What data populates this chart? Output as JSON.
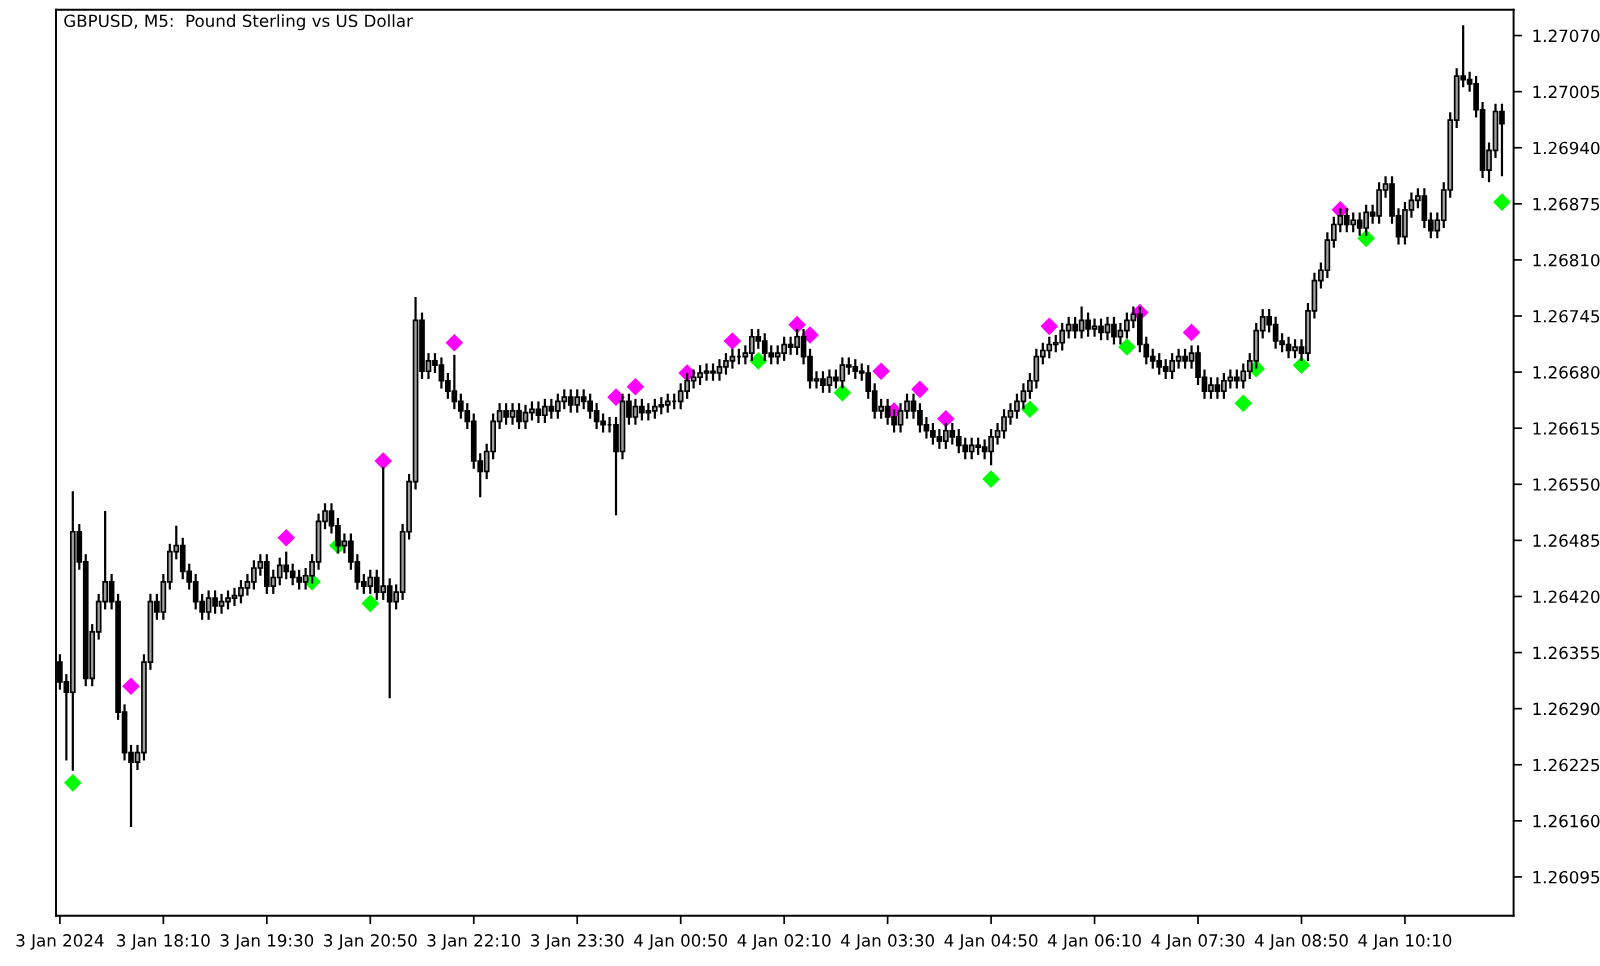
{
  "chart_data": {
    "type": "candlestick",
    "title": "GBPUSD, M5:  Pound Sterling vs US Dollar",
    "color": "#000000",
    "grid": false,
    "x": [
      "2024-01-03T16:50",
      "2024-01-03T16:55",
      "2024-01-03T17:00",
      "2024-01-03T17:05",
      "2024-01-03T17:10",
      "2024-01-03T17:15",
      "2024-01-03T17:20",
      "2024-01-03T17:25",
      "2024-01-03T17:30",
      "2024-01-03T17:35",
      "2024-01-03T17:40",
      "2024-01-03T17:45",
      "2024-01-03T17:50",
      "2024-01-03T17:55",
      "2024-01-03T18:00",
      "2024-01-03T18:05",
      "2024-01-03T18:10",
      "2024-01-03T18:15",
      "2024-01-03T18:20",
      "2024-01-03T18:25",
      "2024-01-03T18:30",
      "2024-01-03T18:35",
      "2024-01-03T18:40",
      "2024-01-03T18:45",
      "2024-01-03T18:50",
      "2024-01-03T18:55",
      "2024-01-03T19:00",
      "2024-01-03T19:05",
      "2024-01-03T19:10",
      "2024-01-03T19:15",
      "2024-01-03T19:20",
      "2024-01-03T19:25",
      "2024-01-03T19:30",
      "2024-01-03T19:35",
      "2024-01-03T19:40",
      "2024-01-03T19:45",
      "2024-01-03T19:50",
      "2024-01-03T19:55",
      "2024-01-03T20:00",
      "2024-01-03T20:05",
      "2024-01-03T20:10",
      "2024-01-03T20:15",
      "2024-01-03T20:20",
      "2024-01-03T20:25",
      "2024-01-03T20:30",
      "2024-01-03T20:35",
      "2024-01-03T20:40",
      "2024-01-03T20:45",
      "2024-01-03T20:50",
      "2024-01-03T20:55",
      "2024-01-03T21:00",
      "2024-01-03T21:05",
      "2024-01-03T21:10",
      "2024-01-03T21:15",
      "2024-01-03T21:20",
      "2024-01-03T21:25",
      "2024-01-03T21:30",
      "2024-01-03T21:35",
      "2024-01-03T21:40",
      "2024-01-03T21:45",
      "2024-01-03T21:50",
      "2024-01-03T21:55",
      "2024-01-03T22:00",
      "2024-01-03T22:05",
      "2024-01-03T22:10",
      "2024-01-03T22:15",
      "2024-01-03T22:20",
      "2024-01-03T22:25",
      "2024-01-03T22:30",
      "2024-01-03T22:35",
      "2024-01-03T22:40",
      "2024-01-03T22:45",
      "2024-01-03T22:50",
      "2024-01-03T22:55",
      "2024-01-03T23:00",
      "2024-01-03T23:05",
      "2024-01-03T23:10",
      "2024-01-03T23:15",
      "2024-01-03T23:20",
      "2024-01-03T23:25",
      "2024-01-03T23:30",
      "2024-01-03T23:35",
      "2024-01-03T23:40",
      "2024-01-03T23:45",
      "2024-01-03T23:50",
      "2024-01-03T23:55",
      "2024-01-04T00:00",
      "2024-01-04T00:05",
      "2024-01-04T00:10",
      "2024-01-04T00:15",
      "2024-01-04T00:20",
      "2024-01-04T00:25",
      "2024-01-04T00:30",
      "2024-01-04T00:35",
      "2024-01-04T00:40",
      "2024-01-04T00:45",
      "2024-01-04T00:50",
      "2024-01-04T00:55",
      "2024-01-04T01:00",
      "2024-01-04T01:05",
      "2024-01-04T01:10",
      "2024-01-04T01:15",
      "2024-01-04T01:20",
      "2024-01-04T01:25",
      "2024-01-04T01:30",
      "2024-01-04T01:35",
      "2024-01-04T01:40",
      "2024-01-04T01:45",
      "2024-01-04T01:50",
      "2024-01-04T01:55",
      "2024-01-04T02:00",
      "2024-01-04T02:05",
      "2024-01-04T02:10",
      "2024-01-04T02:15",
      "2024-01-04T02:20",
      "2024-01-04T02:25",
      "2024-01-04T02:30",
      "2024-01-04T02:35",
      "2024-01-04T02:40",
      "2024-01-04T02:45",
      "2024-01-04T02:50",
      "2024-01-04T02:55",
      "2024-01-04T03:00",
      "2024-01-04T03:05",
      "2024-01-04T03:10",
      "2024-01-04T03:15",
      "2024-01-04T03:20",
      "2024-01-04T03:25",
      "2024-01-04T03:30",
      "2024-01-04T03:35",
      "2024-01-04T03:40",
      "2024-01-04T03:45",
      "2024-01-04T03:50",
      "2024-01-04T03:55",
      "2024-01-04T04:00",
      "2024-01-04T04:05",
      "2024-01-04T04:10",
      "2024-01-04T04:15",
      "2024-01-04T04:20",
      "2024-01-04T04:25",
      "2024-01-04T04:30",
      "2024-01-04T04:35",
      "2024-01-04T04:40",
      "2024-01-04T04:45",
      "2024-01-04T04:50",
      "2024-01-04T04:55",
      "2024-01-04T05:00",
      "2024-01-04T05:05",
      "2024-01-04T05:10",
      "2024-01-04T05:15",
      "2024-01-04T05:20",
      "2024-01-04T05:25",
      "2024-01-04T05:30",
      "2024-01-04T05:35",
      "2024-01-04T05:40",
      "2024-01-04T05:45",
      "2024-01-04T05:50",
      "2024-01-04T05:55",
      "2024-01-04T06:00",
      "2024-01-04T06:05",
      "2024-01-04T06:10",
      "2024-01-04T06:15",
      "2024-01-04T06:20",
      "2024-01-04T06:25",
      "2024-01-04T06:30",
      "2024-01-04T06:35",
      "2024-01-04T06:40",
      "2024-01-04T06:45",
      "2024-01-04T06:50",
      "2024-01-04T06:55",
      "2024-01-04T07:00",
      "2024-01-04T07:05",
      "2024-01-04T07:10",
      "2024-01-04T07:15",
      "2024-01-04T07:20",
      "2024-01-04T07:25",
      "2024-01-04T07:30",
      "2024-01-04T07:35",
      "2024-01-04T07:40",
      "2024-01-04T07:45",
      "2024-01-04T07:50",
      "2024-01-04T07:55",
      "2024-01-04T08:00",
      "2024-01-04T08:05",
      "2024-01-04T08:10",
      "2024-01-04T08:15",
      "2024-01-04T08:20",
      "2024-01-04T08:25",
      "2024-01-04T08:30",
      "2024-01-04T08:35",
      "2024-01-04T08:40",
      "2024-01-04T08:45",
      "2024-01-04T08:50",
      "2024-01-04T08:55",
      "2024-01-04T09:00",
      "2024-01-04T09:05",
      "2024-01-04T09:10",
      "2024-01-04T09:15",
      "2024-01-04T09:20",
      "2024-01-04T09:25",
      "2024-01-04T09:30",
      "2024-01-04T09:35",
      "2024-01-04T09:40",
      "2024-01-04T09:45",
      "2024-01-04T09:50",
      "2024-01-04T09:55",
      "2024-01-04T10:00",
      "2024-01-04T10:05",
      "2024-01-04T10:10",
      "2024-01-04T10:15",
      "2024-01-04T10:20",
      "2024-01-04T10:25",
      "2024-01-04T10:30",
      "2024-01-04T10:35",
      "2024-01-04T10:40",
      "2024-01-04T10:45",
      "2024-01-04T10:50",
      "2024-01-04T10:55",
      "2024-01-04T11:00",
      "2024-01-04T11:05",
      "2024-01-04T11:10",
      "2024-01-04T11:15",
      "2024-01-04T11:20",
      "2024-01-04T11:25"
    ],
    "ohlc": [
      [
        1.26344,
        1.26353,
        1.26312,
        1.26321
      ],
      [
        1.26321,
        1.2633,
        1.2623,
        1.26309
      ],
      [
        1.26309,
        1.26542,
        1.26218,
        1.26495
      ],
      [
        1.26495,
        1.26504,
        1.26451,
        1.2646
      ],
      [
        1.2646,
        1.26469,
        1.26316,
        1.26325
      ],
      [
        1.26325,
        1.26388,
        1.26316,
        1.26379
      ],
      [
        1.26379,
        1.26423,
        1.2637,
        1.26414
      ],
      [
        1.26414,
        1.26519,
        1.26405,
        1.26437
      ],
      [
        1.26437,
        1.26446,
        1.26405,
        1.26414
      ],
      [
        1.26414,
        1.26423,
        1.26277,
        1.26286
      ],
      [
        1.26286,
        1.26295,
        1.2623,
        1.26239
      ],
      [
        1.26239,
        1.26248,
        1.26153,
        1.26228
      ],
      [
        1.26228,
        1.26248,
        1.26219,
        1.26239
      ],
      [
        1.26239,
        1.26353,
        1.2623,
        1.26344
      ],
      [
        1.26344,
        1.26423,
        1.26335,
        1.26414
      ],
      [
        1.26414,
        1.26423,
        1.26393,
        1.26402
      ],
      [
        1.26402,
        1.26446,
        1.26393,
        1.26437
      ],
      [
        1.26437,
        1.26481,
        1.26428,
        1.26472
      ],
      [
        1.26472,
        1.26502,
        1.26463,
        1.26479
      ],
      [
        1.26479,
        1.26488,
        1.2644,
        1.26449
      ],
      [
        1.26449,
        1.26458,
        1.26428,
        1.26437
      ],
      [
        1.26437,
        1.26446,
        1.26405,
        1.26414
      ],
      [
        1.26414,
        1.26423,
        1.26393,
        1.26402
      ],
      [
        1.26402,
        1.26427,
        1.26393,
        1.26418
      ],
      [
        1.26418,
        1.26427,
        1.264,
        1.26409
      ],
      [
        1.26409,
        1.26423,
        1.264,
        1.26414
      ],
      [
        1.26414,
        1.26427,
        1.26405,
        1.26418
      ],
      [
        1.26418,
        1.2643,
        1.26409,
        1.26421
      ],
      [
        1.26421,
        1.26439,
        1.26412,
        1.2643
      ],
      [
        1.2643,
        1.26446,
        1.26421,
        1.26437
      ],
      [
        1.26437,
        1.26462,
        1.26428,
        1.26453
      ],
      [
        1.26453,
        1.26469,
        1.26444,
        1.2646
      ],
      [
        1.2646,
        1.26469,
        1.26423,
        1.26432
      ],
      [
        1.26432,
        1.26451,
        1.26423,
        1.26442
      ],
      [
        1.26442,
        1.26465,
        1.26433,
        1.26456
      ],
      [
        1.26456,
        1.26472,
        1.2644,
        1.26449
      ],
      [
        1.26449,
        1.26458,
        1.26433,
        1.26442
      ],
      [
        1.26442,
        1.26451,
        1.26428,
        1.26437
      ],
      [
        1.26437,
        1.26453,
        1.26428,
        1.26444
      ],
      [
        1.26444,
        1.26469,
        1.26435,
        1.2646
      ],
      [
        1.2646,
        1.26516,
        1.26451,
        1.26507
      ],
      [
        1.26507,
        1.26528,
        1.26498,
        1.26519
      ],
      [
        1.26519,
        1.26528,
        1.26493,
        1.26502
      ],
      [
        1.26502,
        1.26511,
        1.2647,
        1.26479
      ],
      [
        1.26479,
        1.26493,
        1.2647,
        1.26484
      ],
      [
        1.26484,
        1.26493,
        1.26451,
        1.2646
      ],
      [
        1.2646,
        1.26469,
        1.26428,
        1.26437
      ],
      [
        1.26437,
        1.26446,
        1.26423,
        1.26432
      ],
      [
        1.26432,
        1.26451,
        1.26423,
        1.26442
      ],
      [
        1.26442,
        1.26451,
        1.26416,
        1.26425
      ],
      [
        1.26425,
        1.2657,
        1.26416,
        1.26432
      ],
      [
        1.26432,
        1.26441,
        1.26302,
        1.26414
      ],
      [
        1.26414,
        1.26434,
        1.26405,
        1.26425
      ],
      [
        1.26425,
        1.26504,
        1.26416,
        1.26495
      ],
      [
        1.26495,
        1.26562,
        1.26486,
        1.26553
      ],
      [
        1.26553,
        1.26767,
        1.26544,
        1.2674
      ],
      [
        1.2674,
        1.26749,
        1.26672,
        1.26681
      ],
      [
        1.26681,
        1.26702,
        1.26672,
        1.26693
      ],
      [
        1.26693,
        1.26702,
        1.26679,
        1.26688
      ],
      [
        1.26688,
        1.26697,
        1.26661,
        1.2667
      ],
      [
        1.2667,
        1.26679,
        1.26649,
        1.26658
      ],
      [
        1.26658,
        1.267,
        1.26637,
        1.26646
      ],
      [
        1.26646,
        1.26655,
        1.26626,
        1.26635
      ],
      [
        1.26635,
        1.26644,
        1.26614,
        1.26623
      ],
      [
        1.26623,
        1.26632,
        1.26568,
        1.26577
      ],
      [
        1.26577,
        1.26586,
        1.26535,
        1.26565
      ],
      [
        1.26565,
        1.26597,
        1.26556,
        1.26588
      ],
      [
        1.26588,
        1.26632,
        1.26579,
        1.26623
      ],
      [
        1.26623,
        1.26644,
        1.26614,
        1.26635
      ],
      [
        1.26635,
        1.26644,
        1.26619,
        1.26628
      ],
      [
        1.26628,
        1.26644,
        1.26619,
        1.26635
      ],
      [
        1.26635,
        1.26644,
        1.26614,
        1.26623
      ],
      [
        1.26623,
        1.26642,
        1.26614,
        1.26633
      ],
      [
        1.26633,
        1.26646,
        1.26624,
        1.26637
      ],
      [
        1.26637,
        1.26646,
        1.26621,
        1.2663
      ],
      [
        1.2663,
        1.26649,
        1.26621,
        1.2664
      ],
      [
        1.2664,
        1.26649,
        1.26626,
        1.26635
      ],
      [
        1.26635,
        1.26655,
        1.26626,
        1.26646
      ],
      [
        1.26646,
        1.2666,
        1.26637,
        1.26651
      ],
      [
        1.26651,
        1.2666,
        1.26633,
        1.26642
      ],
      [
        1.26642,
        1.2666,
        1.26633,
        1.26651
      ],
      [
        1.26651,
        1.2666,
        1.26637,
        1.26646
      ],
      [
        1.26646,
        1.26655,
        1.26626,
        1.26635
      ],
      [
        1.26635,
        1.26644,
        1.26614,
        1.26623
      ],
      [
        1.26623,
        1.26632,
        1.2661,
        1.26619
      ],
      [
        1.26619,
        1.26628,
        1.2661,
        1.26619
      ],
      [
        1.26619,
        1.26628,
        1.26514,
        1.26588
      ],
      [
        1.26588,
        1.26655,
        1.26579,
        1.26646
      ],
      [
        1.26646,
        1.26655,
        1.26619,
        1.26628
      ],
      [
        1.26628,
        1.26649,
        1.26619,
        1.2664
      ],
      [
        1.2664,
        1.26649,
        1.26624,
        1.26633
      ],
      [
        1.26633,
        1.26644,
        1.26624,
        1.26635
      ],
      [
        1.26635,
        1.26649,
        1.26626,
        1.2664
      ],
      [
        1.2664,
        1.26651,
        1.26631,
        1.26642
      ],
      [
        1.26642,
        1.26655,
        1.26633,
        1.26646
      ],
      [
        1.26646,
        1.26655,
        1.26637,
        1.26646
      ],
      [
        1.26646,
        1.26667,
        1.26637,
        1.26658
      ],
      [
        1.26658,
        1.26679,
        1.26649,
        1.2667
      ],
      [
        1.2667,
        1.26683,
        1.26661,
        1.26674
      ],
      [
        1.26674,
        1.26688,
        1.26665,
        1.26679
      ],
      [
        1.26679,
        1.2669,
        1.2667,
        1.26681
      ],
      [
        1.26681,
        1.2669,
        1.2667,
        1.26679
      ],
      [
        1.26679,
        1.26695,
        1.2667,
        1.26686
      ],
      [
        1.26686,
        1.26702,
        1.26677,
        1.26693
      ],
      [
        1.26693,
        1.26707,
        1.26684,
        1.26698
      ],
      [
        1.26698,
        1.26707,
        1.26689,
        1.26698
      ],
      [
        1.26698,
        1.26711,
        1.26689,
        1.26702
      ],
      [
        1.26702,
        1.2673,
        1.26693,
        1.26721
      ],
      [
        1.26721,
        1.2673,
        1.26707,
        1.26716
      ],
      [
        1.26716,
        1.26725,
        1.26693,
        1.26702
      ],
      [
        1.26702,
        1.26711,
        1.26689,
        1.26698
      ],
      [
        1.26698,
        1.26711,
        1.26689,
        1.26702
      ],
      [
        1.26702,
        1.26721,
        1.26693,
        1.26712
      ],
      [
        1.26712,
        1.26721,
        1.267,
        1.26709
      ],
      [
        1.26709,
        1.2673,
        1.267,
        1.26721
      ],
      [
        1.26721,
        1.2673,
        1.26689,
        1.26698
      ],
      [
        1.26698,
        1.26707,
        1.26661,
        1.2667
      ],
      [
        1.2667,
        1.26681,
        1.26661,
        1.26672
      ],
      [
        1.26672,
        1.26681,
        1.26656,
        1.26665
      ],
      [
        1.26665,
        1.26683,
        1.26656,
        1.26674
      ],
      [
        1.26674,
        1.26683,
        1.26661,
        1.2667
      ],
      [
        1.2667,
        1.26697,
        1.26661,
        1.26688
      ],
      [
        1.26688,
        1.26697,
        1.26677,
        1.26686
      ],
      [
        1.26686,
        1.26695,
        1.26672,
        1.26681
      ],
      [
        1.26681,
        1.2669,
        1.2667,
        1.26679
      ],
      [
        1.26679,
        1.26688,
        1.26649,
        1.26658
      ],
      [
        1.26658,
        1.26667,
        1.26626,
        1.26635
      ],
      [
        1.26635,
        1.26649,
        1.26626,
        1.2664
      ],
      [
        1.2664,
        1.26649,
        1.26619,
        1.26628
      ],
      [
        1.26628,
        1.26637,
        1.2661,
        1.26619
      ],
      [
        1.26619,
        1.26644,
        1.2661,
        1.26635
      ],
      [
        1.26635,
        1.26655,
        1.26626,
        1.26646
      ],
      [
        1.26646,
        1.26655,
        1.26626,
        1.26635
      ],
      [
        1.26635,
        1.26644,
        1.2661,
        1.26619
      ],
      [
        1.26619,
        1.26628,
        1.26603,
        1.26612
      ],
      [
        1.26612,
        1.26621,
        1.26596,
        1.26605
      ],
      [
        1.26605,
        1.26614,
        1.26591,
        1.266
      ],
      [
        1.266,
        1.26621,
        1.26591,
        1.26612
      ],
      [
        1.26612,
        1.26621,
        1.26596,
        1.26605
      ],
      [
        1.26605,
        1.26614,
        1.26586,
        1.26595
      ],
      [
        1.26595,
        1.26604,
        1.26579,
        1.26588
      ],
      [
        1.26588,
        1.26604,
        1.26579,
        1.26595
      ],
      [
        1.26595,
        1.26604,
        1.26584,
        1.26593
      ],
      [
        1.26593,
        1.26602,
        1.26579,
        1.26588
      ],
      [
        1.26588,
        1.26614,
        1.26572,
        1.26605
      ],
      [
        1.26605,
        1.26621,
        1.26596,
        1.26612
      ],
      [
        1.26612,
        1.26637,
        1.26603,
        1.26628
      ],
      [
        1.26628,
        1.26644,
        1.26619,
        1.26635
      ],
      [
        1.26635,
        1.26655,
        1.26626,
        1.26646
      ],
      [
        1.26646,
        1.26667,
        1.26637,
        1.26658
      ],
      [
        1.26658,
        1.26679,
        1.26649,
        1.2667
      ],
      [
        1.2667,
        1.26707,
        1.26661,
        1.26698
      ],
      [
        1.26698,
        1.26714,
        1.26689,
        1.26705
      ],
      [
        1.26705,
        1.26721,
        1.26696,
        1.26712
      ],
      [
        1.26712,
        1.26723,
        1.26703,
        1.26714
      ],
      [
        1.26714,
        1.26737,
        1.26705,
        1.26728
      ],
      [
        1.26728,
        1.26744,
        1.26719,
        1.26735
      ],
      [
        1.26735,
        1.26744,
        1.26719,
        1.26728
      ],
      [
        1.26728,
        1.26756,
        1.26719,
        1.2674
      ],
      [
        1.2674,
        1.26749,
        1.26721,
        1.2673
      ],
      [
        1.2673,
        1.26742,
        1.26721,
        1.26733
      ],
      [
        1.26733,
        1.26742,
        1.26717,
        1.26726
      ],
      [
        1.26726,
        1.26744,
        1.26717,
        1.26735
      ],
      [
        1.26735,
        1.26744,
        1.26712,
        1.26721
      ],
      [
        1.26721,
        1.26737,
        1.26712,
        1.26728
      ],
      [
        1.26728,
        1.26749,
        1.26719,
        1.2674
      ],
      [
        1.2674,
        1.26756,
        1.26731,
        1.26747
      ],
      [
        1.26747,
        1.26756,
        1.26703,
        1.26712
      ],
      [
        1.26712,
        1.26721,
        1.26689,
        1.26698
      ],
      [
        1.26698,
        1.26707,
        1.26684,
        1.26693
      ],
      [
        1.26693,
        1.26702,
        1.26677,
        1.26686
      ],
      [
        1.26686,
        1.26695,
        1.26672,
        1.26681
      ],
      [
        1.26681,
        1.26702,
        1.26672,
        1.26693
      ],
      [
        1.26693,
        1.26707,
        1.26684,
        1.26698
      ],
      [
        1.26698,
        1.26707,
        1.26684,
        1.26693
      ],
      [
        1.26693,
        1.26711,
        1.26684,
        1.26702
      ],
      [
        1.26702,
        1.26711,
        1.26665,
        1.26674
      ],
      [
        1.26674,
        1.26683,
        1.26649,
        1.26658
      ],
      [
        1.26658,
        1.26674,
        1.26649,
        1.26665
      ],
      [
        1.26665,
        1.26674,
        1.26649,
        1.26658
      ],
      [
        1.26658,
        1.26679,
        1.26649,
        1.2667
      ],
      [
        1.2667,
        1.26683,
        1.26661,
        1.26674
      ],
      [
        1.26674,
        1.26683,
        1.26661,
        1.2667
      ],
      [
        1.2667,
        1.2669,
        1.26661,
        1.26681
      ],
      [
        1.26681,
        1.26702,
        1.26672,
        1.26693
      ],
      [
        1.26693,
        1.26737,
        1.26684,
        1.26728
      ],
      [
        1.26728,
        1.26753,
        1.26719,
        1.26744
      ],
      [
        1.26744,
        1.26753,
        1.26726,
        1.26735
      ],
      [
        1.26735,
        1.26744,
        1.26707,
        1.26716
      ],
      [
        1.26716,
        1.26725,
        1.26703,
        1.26712
      ],
      [
        1.26712,
        1.26721,
        1.26696,
        1.26705
      ],
      [
        1.26705,
        1.26718,
        1.26696,
        1.26709
      ],
      [
        1.26709,
        1.26718,
        1.26693,
        1.26702
      ],
      [
        1.26702,
        1.2676,
        1.26693,
        1.26751
      ],
      [
        1.26751,
        1.26795,
        1.26742,
        1.26786
      ],
      [
        1.26786,
        1.26807,
        1.26777,
        1.26798
      ],
      [
        1.26798,
        1.26842,
        1.26789,
        1.26833
      ],
      [
        1.26833,
        1.2686,
        1.26824,
        1.26851
      ],
      [
        1.26851,
        1.2687,
        1.26842,
        1.26861
      ],
      [
        1.26861,
        1.2687,
        1.26842,
        1.26851
      ],
      [
        1.26851,
        1.26865,
        1.26842,
        1.26856
      ],
      [
        1.26856,
        1.26865,
        1.26838,
        1.26847
      ],
      [
        1.26847,
        1.26874,
        1.26838,
        1.26865
      ],
      [
        1.26865,
        1.26874,
        1.26852,
        1.26861
      ],
      [
        1.26861,
        1.269,
        1.26852,
        1.26891
      ],
      [
        1.26891,
        1.26907,
        1.26882,
        1.26898
      ],
      [
        1.26898,
        1.26907,
        1.26852,
        1.26861
      ],
      [
        1.26861,
        1.2687,
        1.26828,
        1.26837
      ],
      [
        1.26837,
        1.26877,
        1.26828,
        1.26868
      ],
      [
        1.26868,
        1.26888,
        1.26859,
        1.26879
      ],
      [
        1.26879,
        1.26893,
        1.2687,
        1.26884
      ],
      [
        1.26884,
        1.26893,
        1.26847,
        1.26856
      ],
      [
        1.26856,
        1.26865,
        1.26835,
        1.26844
      ],
      [
        1.26844,
        1.26865,
        1.26835,
        1.26856
      ],
      [
        1.26856,
        1.269,
        1.26847,
        1.26891
      ],
      [
        1.26891,
        1.26981,
        1.26882,
        1.26972
      ],
      [
        1.26972,
        1.27032,
        1.26963,
        1.27023
      ],
      [
        1.27023,
        1.27082,
        1.2701,
        1.27019
      ],
      [
        1.27019,
        1.27028,
        1.27005,
        1.27014
      ],
      [
        1.27014,
        1.27023,
        1.26975,
        1.26984
      ],
      [
        1.26984,
        1.26993,
        1.26905,
        1.26914
      ],
      [
        1.26914,
        1.26946,
        1.269,
        1.26937
      ],
      [
        1.26937,
        1.26991,
        1.26928,
        1.26982
      ],
      [
        1.26982,
        1.26991,
        1.26907,
        1.26968
      ]
    ],
    "series": [
      {
        "type": "scatter",
        "color": "#ff00ff",
        "marker": "diamond",
        "x": [
          "2024-01-03T17:45",
          "2024-01-03T19:45",
          "2024-01-03T21:00",
          "2024-01-03T21:55",
          "2024-01-04T00:00",
          "2024-01-04T00:15",
          "2024-01-04T00:55",
          "2024-01-04T01:30",
          "2024-01-04T02:20",
          "2024-01-04T02:30",
          "2024-01-04T03:25",
          "2024-01-04T03:35",
          "2024-01-04T03:55",
          "2024-01-04T04:15",
          "2024-01-04T05:35",
          "2024-01-04T06:45",
          "2024-01-04T07:25",
          "2024-01-04T09:20"
        ],
        "values": [
          1.26316,
          1.26488,
          1.26577,
          1.26714,
          1.26651,
          1.26663,
          1.26679,
          1.26716,
          1.26735,
          1.26723,
          1.26681,
          1.26635,
          1.2666,
          1.26626,
          1.26733,
          1.26749,
          1.26726,
          1.26868
        ]
      },
      {
        "type": "scatter",
        "color": "#00ff00",
        "marker": "diamond",
        "x": [
          "2024-01-03T17:00",
          "2024-01-03T20:05",
          "2024-01-03T20:25",
          "2024-01-03T20:50",
          "2024-01-04T01:50",
          "2024-01-04T02:55",
          "2024-01-04T04:50",
          "2024-01-04T05:20",
          "2024-01-04T06:35",
          "2024-01-04T08:05",
          "2024-01-04T08:15",
          "2024-01-04T08:50",
          "2024-01-04T09:40",
          "2024-01-04T11:25"
        ],
        "values": [
          1.26204,
          1.26437,
          1.26479,
          1.26412,
          1.26693,
          1.26656,
          1.26556,
          1.26637,
          1.26709,
          1.26644,
          1.26684,
          1.26688,
          1.26835,
          1.26877
        ]
      }
    ],
    "xlim": [
      "2024-01-03T16:47",
      "2024-01-04T11:34"
    ],
    "xticks": [
      {
        "value": "2024-01-03T16:50",
        "label": "3 Jan 2024"
      },
      {
        "value": "2024-01-03T18:10",
        "label": "3 Jan 18:10"
      },
      {
        "value": "2024-01-03T19:30",
        "label": "3 Jan 19:30"
      },
      {
        "value": "2024-01-03T20:50",
        "label": "3 Jan 20:50"
      },
      {
        "value": "2024-01-03T22:10",
        "label": "3 Jan 22:10"
      },
      {
        "value": "2024-01-03T23:30",
        "label": "3 Jan 23:30"
      },
      {
        "value": "2024-01-04T00:50",
        "label": "4 Jan 00:50"
      },
      {
        "value": "2024-01-04T02:10",
        "label": "4 Jan 02:10"
      },
      {
        "value": "2024-01-04T03:30",
        "label": "4 Jan 03:30"
      },
      {
        "value": "2024-01-04T04:50",
        "label": "4 Jan 04:50"
      },
      {
        "value": "2024-01-04T06:10",
        "label": "4 Jan 06:10"
      },
      {
        "value": "2024-01-04T07:30",
        "label": "4 Jan 07:30"
      },
      {
        "value": "2024-01-04T08:50",
        "label": "4 Jan 08:50"
      },
      {
        "value": "2024-01-04T10:10",
        "label": "4 Jan 10:10"
      }
    ],
    "ylim": [
      1.2605,
      1.271
    ],
    "yticks": [
      1.26095,
      {
        "value": 1.2616,
        "label": "1.26160"
      },
      1.26225,
      {
        "value": 1.2629,
        "label": "1.26290"
      },
      1.26355,
      {
        "value": 1.2642,
        "label": "1.26420"
      },
      1.26485,
      {
        "value": 1.2655,
        "label": "1.26550"
      },
      1.26615,
      {
        "value": 1.2668,
        "label": "1.26680"
      },
      1.26745,
      {
        "value": 1.2681,
        "label": "1.26810"
      },
      1.26875,
      {
        "value": 1.2694,
        "label": "1.26940"
      },
      1.27005,
      {
        "value": 1.2707,
        "label": "1.27070"
      }
    ]
  }
}
